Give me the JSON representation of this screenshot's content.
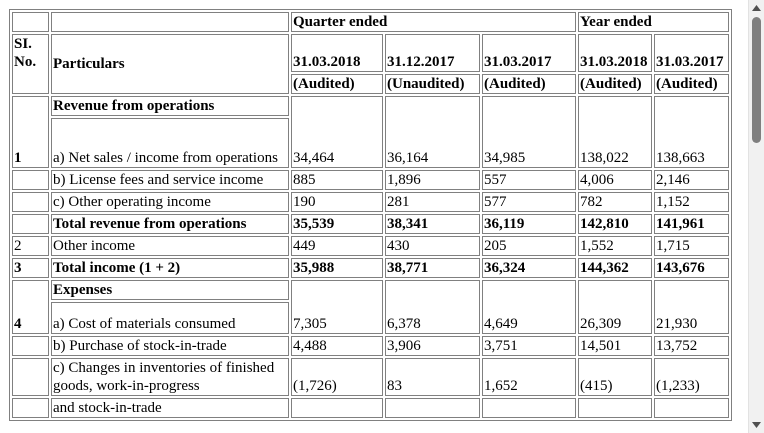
{
  "header": {
    "quarter_ended": "Quarter ended",
    "year_ended": "Year ended",
    "sl_no": "SI. No.",
    "particulars": "Particulars",
    "dates": [
      "31.03.2018",
      "31.12.2017",
      "31.03.2017",
      "31.03.2018",
      "31.03.2017"
    ],
    "audit": [
      "(Audited)",
      "(Unaudited)",
      "(Audited)",
      "(Audited)",
      "(Audited)"
    ]
  },
  "revenue": {
    "sl": "1",
    "title": "Revenue from operations",
    "net_sales": {
      "label": "a) Net sales / income from operations",
      "values": [
        "34,464",
        "36,164",
        "34,985",
        "138,022",
        "138,663"
      ]
    },
    "license": {
      "label": "b) License fees and service income",
      "values": [
        "885",
        "1,896",
        "557",
        "4,006",
        "2,146"
      ]
    },
    "other_op": {
      "label": "c) Other operating income",
      "values": [
        "190",
        "281",
        "577",
        "782",
        "1,152"
      ]
    },
    "total": {
      "label": "Total revenue from operations",
      "values": [
        "35,539",
        "38,341",
        "36,119",
        "142,810",
        "141,961"
      ]
    }
  },
  "other_income": {
    "sl": "2",
    "label": "Other income",
    "values": [
      "449",
      "430",
      "205",
      "1,552",
      "1,715"
    ]
  },
  "total_income": {
    "sl": "3",
    "label": "Total income (1 + 2)",
    "values": [
      "35,988",
      "38,771",
      "36,324",
      "144,362",
      "143,676"
    ]
  },
  "expenses": {
    "sl": "4",
    "title": "Expenses",
    "materials": {
      "label": "a) Cost of materials consumed",
      "values": [
        "7,305",
        "6,378",
        "4,649",
        "26,309",
        "21,930"
      ]
    },
    "stock_purchase": {
      "label": "b) Purchase of stock-in-trade",
      "values": [
        "4,488",
        "3,906",
        "3,751",
        "14,501",
        "13,752"
      ]
    },
    "inventory_changes": {
      "label": "c) Changes in inventories of finished goods, work-in-progress",
      "values": [
        "(1,726)",
        "83",
        "1,652",
        "(415)",
        "(1,233)"
      ]
    },
    "inventory_changes_cont": "and stock-in-trade"
  },
  "scrollbar": {
    "up_icon": "triangle-up",
    "down_icon": "triangle-down",
    "scroll_fraction": 0
  }
}
